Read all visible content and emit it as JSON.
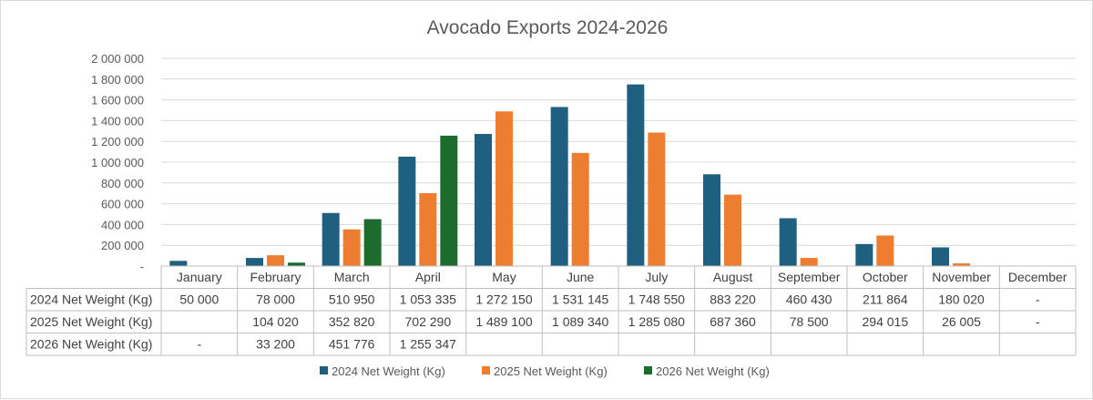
{
  "chart_data": {
    "type": "bar",
    "title": "Avocado Exports 2024-2026",
    "categories": [
      "January",
      "February",
      "March",
      "April",
      "May",
      "June",
      "July",
      "August",
      "September",
      "October",
      "November",
      "December"
    ],
    "ylim": [
      0,
      2000000
    ],
    "yticks": [
      0,
      200000,
      400000,
      600000,
      800000,
      1000000,
      1200000,
      1400000,
      1600000,
      1800000,
      2000000
    ],
    "ytick_labels": [
      "-",
      "200 000",
      "400 000",
      "600 000",
      "800 000",
      "1 000 000",
      "1 200 000",
      "1 400 000",
      "1 600 000",
      "1 800 000",
      "2 000 000"
    ],
    "grid": true,
    "legend_position": "bottom",
    "series": [
      {
        "name": "2024 Net Weight (Kg)",
        "color": "#1f5f7f",
        "values": [
          50000,
          78000,
          510950,
          1053335,
          1272150,
          1531145,
          1748550,
          883220,
          460430,
          211864,
          180020,
          null
        ],
        "labels": [
          "50 000",
          "78 000",
          "510 950",
          "1 053 335",
          "1 272 150",
          "1 531 145",
          "1 748 550",
          "883 220",
          "460 430",
          "211 864",
          "180 020",
          "-"
        ]
      },
      {
        "name": "2025 Net Weight (Kg)",
        "color": "#ed7d31",
        "values": [
          null,
          104020,
          352820,
          702290,
          1489100,
          1089340,
          1285080,
          687360,
          78500,
          294015,
          26005,
          null
        ],
        "labels": [
          "",
          "104 020",
          "352 820",
          "702 290",
          "1 489 100",
          "1 089 340",
          "1 285 080",
          "687 360",
          "78 500",
          "294 015",
          "26 005",
          "-"
        ]
      },
      {
        "name": "2026 Net Weight (Kg)",
        "color": "#1e6b2e",
        "values": [
          null,
          33200,
          451776,
          1255347,
          null,
          null,
          null,
          null,
          null,
          null,
          null,
          null
        ],
        "labels": [
          "-",
          "33 200",
          "451 776",
          "1 255 347",
          "",
          "",
          "",
          "",
          "",
          "",
          "",
          ""
        ]
      }
    ]
  }
}
